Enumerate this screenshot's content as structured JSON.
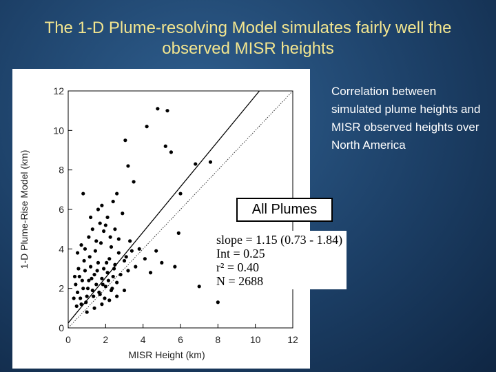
{
  "chart_data": {
    "type": "scatter",
    "title": "The 1-D Plume-resolving Model simulates fairly well the observed MISR heights",
    "side_note": "Correlation between simulated plume heights and MISR observed heights over North America",
    "x_label": "MISR Height (km)",
    "y_label": "1-D Plume-Rise Model (km)",
    "annotation": "All Plumes",
    "stats": [
      "slope = 1.15 (0.73 - 1.84)",
      "Int = 0.25",
      "r² = 0.40",
      "N = 2688"
    ],
    "fit": {
      "slope": 1.15,
      "intercept": 0.25
    },
    "color": "#000000",
    "xlim": [
      0,
      12
    ],
    "ylim": [
      0,
      12
    ],
    "xticks": [
      0,
      2,
      4,
      6,
      8,
      10,
      12
    ],
    "yticks": [
      0,
      2,
      4,
      6,
      8,
      10,
      12
    ],
    "x": [
      4.78,
      5.3,
      4.2,
      3.05,
      5.2,
      5.5,
      6.8,
      7.6,
      3.2,
      3.5,
      2.6,
      6.0,
      1.8,
      7.0,
      8.0,
      5.7,
      5.9,
      0.8,
      0.3,
      0.4,
      0.5,
      0.6,
      0.7,
      0.8,
      0.9,
      1.0,
      1.1,
      1.2,
      1.3,
      1.4,
      1.5,
      1.6,
      1.7,
      1.8,
      1.9,
      2.0,
      2.1,
      2.2,
      2.3,
      2.4,
      2.5,
      2.6,
      2.7,
      2.8,
      3.0,
      3.2,
      3.4,
      3.6,
      0.35,
      0.45,
      0.55,
      0.65,
      0.75,
      0.85,
      0.95,
      1.05,
      1.15,
      1.25,
      1.35,
      1.45,
      1.55,
      1.65,
      1.75,
      1.85,
      1.95,
      2.05,
      2.15,
      2.25,
      2.35,
      2.45,
      0.5,
      0.7,
      0.9,
      1.1,
      1.3,
      1.5,
      1.7,
      1.9,
      2.1,
      2.3,
      2.5,
      2.7,
      2.9,
      3.1,
      3.3,
      3.8,
      4.1,
      4.4,
      4.7,
      5.0,
      1.0,
      1.4,
      1.8,
      2.2,
      2.6,
      3.0,
      1.2,
      1.6,
      2.0,
      2.4
    ],
    "values": [
      11.1,
      11.0,
      10.2,
      9.5,
      9.2,
      8.9,
      8.3,
      8.4,
      8.2,
      7.4,
      6.8,
      6.8,
      6.2,
      2.1,
      1.3,
      3.1,
      4.8,
      6.8,
      1.5,
      2.2,
      1.8,
      2.6,
      1.2,
      2.0,
      2.9,
      1.6,
      2.4,
      3.1,
      1.9,
      2.7,
      2.2,
      3.3,
      1.7,
      2.5,
      3.0,
      2.1,
      2.8,
      3.5,
      1.9,
      2.6,
      3.2,
      2.3,
      3.8,
      2.7,
      3.4,
      2.9,
      3.9,
      3.1,
      2.6,
      1.1,
      3.0,
      1.5,
      2.4,
      3.4,
      1.3,
      2.0,
      3.6,
      2.5,
      1.6,
      3.9,
      2.9,
      1.8,
      4.3,
      2.2,
      1.5,
      3.3,
      2.4,
      4.6,
      2.0,
      3.0,
      3.8,
      4.2,
      4.0,
      4.6,
      5.0,
      4.4,
      5.3,
      4.9,
      5.6,
      4.1,
      5.0,
      4.5,
      5.8,
      3.6,
      4.4,
      4.0,
      3.5,
      2.8,
      3.9,
      3.3,
      0.8,
      1.0,
      1.2,
      1.4,
      1.6,
      1.9,
      5.6,
      6.0,
      5.2,
      6.4
    ]
  }
}
